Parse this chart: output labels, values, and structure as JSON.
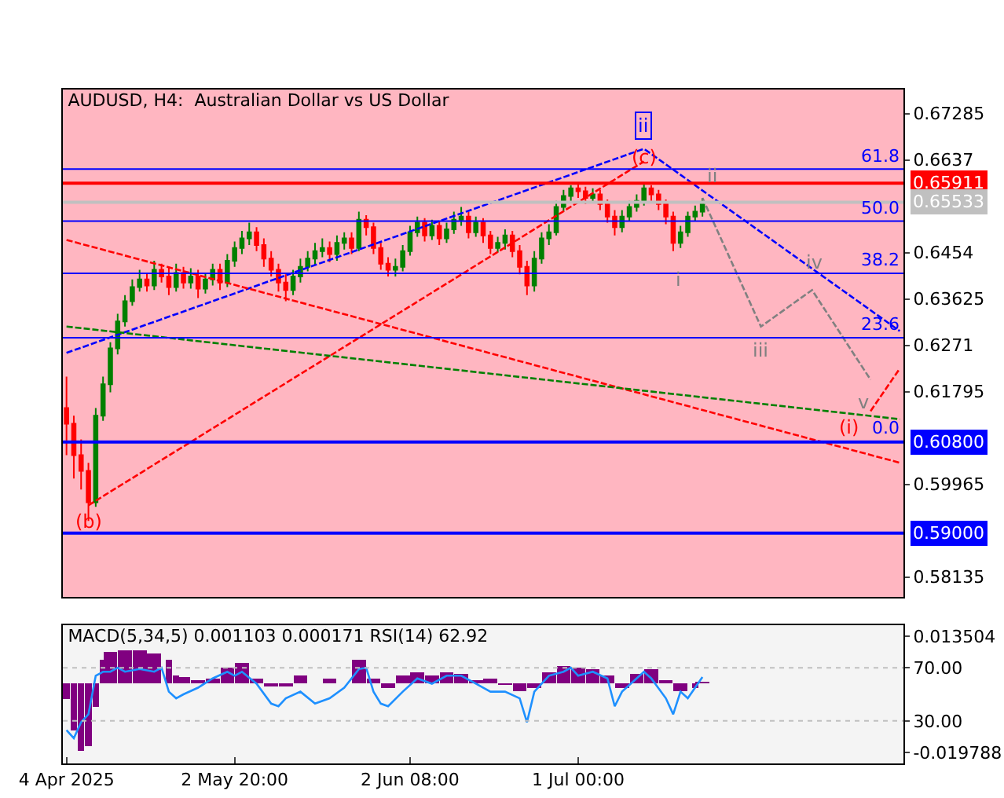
{
  "chart_data": [
    {
      "type": "candlestick",
      "title": "AUDUSD, H4:  Australian Dollar vs US Dollar",
      "categories": [
        null,
        null,
        null,
        null,
        null,
        null,
        null,
        null,
        null,
        null,
        null,
        null,
        null,
        null,
        null,
        null,
        null,
        null,
        null,
        null,
        null,
        null,
        null,
        null,
        null,
        null,
        null,
        null,
        null,
        null,
        null,
        null,
        null,
        null,
        null,
        null,
        null,
        null,
        null,
        null,
        null,
        null,
        null,
        null,
        null,
        null,
        null,
        null,
        null,
        null,
        null,
        null,
        null,
        null,
        null,
        null,
        null,
        null,
        null,
        null,
        null,
        null,
        null,
        null,
        null,
        null,
        null,
        null,
        null,
        null,
        null,
        null,
        null,
        null,
        null,
        null,
        null,
        null,
        null,
        null,
        null,
        null,
        null,
        null,
        null,
        null,
        null,
        null,
        null,
        null,
        null,
        null,
        null,
        null,
        null,
        null,
        null,
        null,
        null,
        null,
        null,
        null,
        null,
        null,
        null,
        null,
        null,
        null,
        null,
        null,
        null,
        null,
        null,
        null,
        null
      ],
      "ohlc": [
        [
          0.6147,
          0.6209,
          0.6054,
          0.6116
        ],
        [
          0.6116,
          0.6132,
          0.6008,
          0.6054
        ],
        [
          0.6054,
          0.6085,
          0.5986,
          0.6023
        ],
        [
          0.6023,
          0.6039,
          0.5924,
          0.5961
        ],
        [
          0.5961,
          0.6147,
          0.5952,
          0.6132
        ],
        [
          0.6132,
          0.6209,
          0.6122,
          0.6194
        ],
        [
          0.6194,
          0.6277,
          0.6178,
          0.6265
        ],
        [
          0.6265,
          0.6333,
          0.6253,
          0.6318
        ],
        [
          0.6318,
          0.637,
          0.6308,
          0.6358
        ],
        [
          0.6358,
          0.6401,
          0.6349,
          0.6386
        ],
        [
          0.6386,
          0.642,
          0.6377,
          0.6401
        ],
        [
          0.6401,
          0.6414,
          0.6377,
          0.6389
        ],
        [
          0.6389,
          0.6438,
          0.638,
          0.642
        ],
        [
          0.642,
          0.6432,
          0.6395,
          0.6407
        ],
        [
          0.6407,
          0.6426,
          0.637,
          0.6386
        ],
        [
          0.6386,
          0.6432,
          0.6377,
          0.6414
        ],
        [
          0.6414,
          0.6426,
          0.6383,
          0.6395
        ],
        [
          0.6395,
          0.6423,
          0.6383,
          0.6407
        ],
        [
          0.6407,
          0.642,
          0.6364,
          0.6383
        ],
        [
          0.6383,
          0.6414,
          0.6373,
          0.6401
        ],
        [
          0.6401,
          0.6432,
          0.6389,
          0.642
        ],
        [
          0.642,
          0.6432,
          0.638,
          0.6395
        ],
        [
          0.6395,
          0.6451,
          0.6386,
          0.6438
        ],
        [
          0.6438,
          0.6476,
          0.6426,
          0.6463
        ],
        [
          0.6463,
          0.6497,
          0.6451,
          0.6482
        ],
        [
          0.6482,
          0.6513,
          0.6469,
          0.6494
        ],
        [
          0.6494,
          0.6504,
          0.6457,
          0.6469
        ],
        [
          0.6469,
          0.6482,
          0.6426,
          0.6442
        ],
        [
          0.6442,
          0.6457,
          0.6407,
          0.642
        ],
        [
          0.642,
          0.6432,
          0.6377,
          0.6395
        ],
        [
          0.6395,
          0.6411,
          0.6358,
          0.638
        ],
        [
          0.638,
          0.642,
          0.637,
          0.6407
        ],
        [
          0.6407,
          0.6442,
          0.6395,
          0.6426
        ],
        [
          0.6426,
          0.6457,
          0.6417,
          0.6442
        ],
        [
          0.6442,
          0.6473,
          0.6429,
          0.6457
        ],
        [
          0.6457,
          0.6482,
          0.6445,
          0.6463
        ],
        [
          0.6463,
          0.6476,
          0.6435,
          0.6451
        ],
        [
          0.6451,
          0.6488,
          0.6438,
          0.6473
        ],
        [
          0.6473,
          0.6494,
          0.646,
          0.6482
        ],
        [
          0.6482,
          0.6494,
          0.6451,
          0.6463
        ],
        [
          0.6463,
          0.6535,
          0.6457,
          0.6519
        ],
        [
          0.6519,
          0.6528,
          0.6488,
          0.6504
        ],
        [
          0.6504,
          0.6513,
          0.6451,
          0.6463
        ],
        [
          0.6463,
          0.6473,
          0.642,
          0.6432
        ],
        [
          0.6432,
          0.6445,
          0.6407,
          0.642
        ],
        [
          0.642,
          0.6442,
          0.6407,
          0.6426
        ],
        [
          0.6426,
          0.6469,
          0.6417,
          0.6457
        ],
        [
          0.6457,
          0.6507,
          0.6448,
          0.6494
        ],
        [
          0.6494,
          0.6525,
          0.6485,
          0.6513
        ],
        [
          0.6513,
          0.6522,
          0.6476,
          0.6488
        ],
        [
          0.6488,
          0.6519,
          0.6479,
          0.6507
        ],
        [
          0.6507,
          0.6516,
          0.6469,
          0.6482
        ],
        [
          0.6482,
          0.6513,
          0.6473,
          0.65
        ],
        [
          0.65,
          0.6535,
          0.6491,
          0.6519
        ],
        [
          0.6519,
          0.6544,
          0.6507,
          0.6525
        ],
        [
          0.6525,
          0.6535,
          0.6482,
          0.6494
        ],
        [
          0.6494,
          0.6525,
          0.6485,
          0.6513
        ],
        [
          0.6513,
          0.6522,
          0.6473,
          0.6488
        ],
        [
          0.6488,
          0.6497,
          0.6451,
          0.6463
        ],
        [
          0.6463,
          0.6485,
          0.6454,
          0.6473
        ],
        [
          0.6473,
          0.65,
          0.646,
          0.6488
        ],
        [
          0.6488,
          0.6497,
          0.6445,
          0.6457
        ],
        [
          0.6457,
          0.6469,
          0.6411,
          0.6426
        ],
        [
          0.6426,
          0.6438,
          0.637,
          0.6389
        ],
        [
          0.6389,
          0.6457,
          0.6377,
          0.6442
        ],
        [
          0.6442,
          0.6494,
          0.6432,
          0.6482
        ],
        [
          0.6482,
          0.651,
          0.6469,
          0.6494
        ],
        [
          0.6494,
          0.6556,
          0.6488,
          0.6544
        ],
        [
          0.6544,
          0.6578,
          0.6535,
          0.6566
        ],
        [
          0.6566,
          0.6587,
          0.6553,
          0.6581
        ],
        [
          0.6581,
          0.659,
          0.6562,
          0.6575
        ],
        [
          0.6575,
          0.6584,
          0.655,
          0.6562
        ],
        [
          0.6562,
          0.6581,
          0.6553,
          0.6569
        ],
        [
          0.6569,
          0.6578,
          0.6538,
          0.655
        ],
        [
          0.655,
          0.6559,
          0.6513,
          0.6525
        ],
        [
          0.6525,
          0.6538,
          0.6488,
          0.6504
        ],
        [
          0.6504,
          0.6538,
          0.6494,
          0.6525
        ],
        [
          0.6525,
          0.6556,
          0.6516,
          0.6544
        ],
        [
          0.6544,
          0.6569,
          0.6535,
          0.6556
        ],
        [
          0.6556,
          0.659,
          0.6547,
          0.6581
        ],
        [
          0.6581,
          0.6587,
          0.6556,
          0.6569
        ],
        [
          0.6569,
          0.6578,
          0.6538,
          0.655
        ],
        [
          0.655,
          0.6559,
          0.651,
          0.6525
        ],
        [
          0.6525,
          0.6535,
          0.6457,
          0.6473
        ],
        [
          0.6473,
          0.6507,
          0.6463,
          0.6494
        ],
        [
          0.6494,
          0.6535,
          0.6485,
          0.6525
        ],
        [
          0.6525,
          0.6547,
          0.6516,
          0.6535
        ],
        [
          0.6535,
          0.6562,
          0.6525,
          0.6553
        ],
        null,
        null,
        null,
        null,
        null,
        null,
        null,
        null,
        null,
        null,
        null,
        null,
        null,
        null,
        null,
        null,
        null,
        null,
        null,
        null,
        null,
        null,
        null,
        null,
        null,
        null,
        null
      ],
      "colors": [
        "#ff0000",
        "#ff0000",
        "#ff0000",
        "#ff0000",
        "#008000",
        "#008000",
        "#008000",
        "#008000",
        "#008000",
        "#008000",
        "#008000",
        "#ff0000",
        "#008000",
        "#ff0000",
        "#ff0000",
        "#008000",
        "#ff0000",
        "#008000",
        "#ff0000",
        "#008000",
        "#008000",
        "#ff0000",
        "#008000",
        "#008000",
        "#008000",
        "#008000",
        "#ff0000",
        "#ff0000",
        "#ff0000",
        "#ff0000",
        "#ff0000",
        "#008000",
        "#008000",
        "#008000",
        "#008000",
        "#008000",
        "#ff0000",
        "#008000",
        "#008000",
        "#ff0000",
        "#008000",
        "#ff0000",
        "#ff0000",
        "#ff0000",
        "#ff0000",
        "#008000",
        "#008000",
        "#008000",
        "#008000",
        "#ff0000",
        "#008000",
        "#ff0000",
        "#008000",
        "#008000",
        "#008000",
        "#ff0000",
        "#008000",
        "#ff0000",
        "#ff0000",
        "#008000",
        "#008000",
        "#ff0000",
        "#ff0000",
        "#ff0000",
        "#008000",
        "#008000",
        "#008000",
        "#008000",
        "#008000",
        "#008000",
        "#ff0000",
        "#ff0000",
        "#008000",
        "#ff0000",
        "#ff0000",
        "#ff0000",
        "#008000",
        "#008000",
        "#008000",
        "#008000",
        "#ff0000",
        "#ff0000",
        "#ff0000",
        "#ff0000",
        "#008000",
        "#008000",
        "#008000",
        "#008000",
        null,
        null,
        null,
        null,
        null,
        null,
        null,
        null,
        null,
        null,
        null,
        null,
        null,
        null,
        null,
        null,
        null,
        null,
        null,
        null,
        null,
        null,
        null,
        null,
        null,
        null,
        null
      ],
      "series": [
        {
          "type": "line",
          "color": "#808080",
          "line_style": "dashed",
          "values": [
            null,
            null,
            null,
            null,
            null,
            null,
            null,
            null,
            null,
            null,
            null,
            null,
            null,
            null,
            null,
            null,
            null,
            null,
            null,
            null,
            null,
            null,
            null,
            null,
            null,
            null,
            null,
            null,
            null,
            null,
            null,
            null,
            null,
            null,
            null,
            null,
            null,
            null,
            null,
            null,
            null,
            null,
            null,
            null,
            null,
            null,
            null,
            null,
            null,
            null,
            null,
            null,
            null,
            null,
            null,
            null,
            null,
            null,
            null,
            null,
            null,
            null,
            null,
            null,
            null,
            null,
            null,
            null,
            null,
            null,
            null,
            null,
            null,
            null,
            null,
            null,
            null,
            null,
            null,
            null,
            null,
            null,
            null,
            null,
            null,
            null,
            null,
            0.6562,
            null,
            null,
            null,
            null,
            null,
            null,
            null,
            0.6308,
            null,
            null,
            null,
            null,
            null,
            null,
            0.638,
            null,
            null,
            null,
            null,
            null,
            null,
            null,
            0.6203,
            null,
            null,
            null,
            null
          ]
        },
        {
          "type": "line",
          "color": "#0000ff",
          "line_style": "dashed",
          "values": [
            0.6256,
            null,
            null,
            null,
            null,
            null,
            null,
            null,
            null,
            null,
            null,
            null,
            null,
            null,
            null,
            null,
            null,
            null,
            null,
            null,
            null,
            null,
            null,
            null,
            null,
            null,
            null,
            null,
            null,
            null,
            null,
            null,
            null,
            null,
            null,
            null,
            null,
            null,
            null,
            null,
            null,
            null,
            null,
            null,
            null,
            null,
            null,
            null,
            null,
            null,
            null,
            null,
            null,
            null,
            null,
            null,
            null,
            null,
            null,
            null,
            null,
            null,
            null,
            null,
            null,
            null,
            null,
            null,
            null,
            null,
            null,
            null,
            null,
            null,
            null,
            null,
            null,
            null,
            null,
            0.6659,
            null,
            null,
            null,
            null,
            null,
            null,
            null,
            null,
            null,
            null,
            null,
            null,
            null,
            null,
            null,
            null,
            null,
            null,
            null,
            null,
            null,
            null,
            null,
            null,
            null,
            null,
            null,
            null,
            null,
            null,
            null,
            null,
            null,
            null,
            0.6299
          ]
        },
        {
          "type": "line",
          "color": "#ff0000",
          "line_style": "dashed",
          "values": [
            null,
            null,
            null,
            0.5955,
            null,
            null,
            null,
            null,
            null,
            null,
            null,
            null,
            null,
            null,
            null,
            null,
            null,
            null,
            null,
            null,
            null,
            null,
            null,
            null,
            null,
            null,
            null,
            null,
            null,
            null,
            null,
            null,
            null,
            null,
            null,
            null,
            null,
            null,
            null,
            null,
            null,
            null,
            null,
            null,
            null,
            null,
            null,
            null,
            null,
            null,
            null,
            null,
            null,
            null,
            null,
            null,
            null,
            null,
            null,
            null,
            null,
            null,
            null,
            null,
            null,
            null,
            null,
            null,
            null,
            null,
            null,
            null,
            null,
            null,
            null,
            null,
            null,
            null,
            null,
            0.6634,
            null,
            null,
            null,
            null,
            null,
            null,
            null,
            null,
            null,
            null,
            null,
            null,
            null,
            null,
            null,
            null,
            null,
            null,
            null,
            null,
            null,
            null,
            null,
            null,
            null,
            null,
            null,
            null,
            null,
            null,
            null,
            null,
            null,
            null,
            null
          ]
        },
        {
          "type": "line",
          "color": "#ff0000",
          "line_style": "dashed",
          "values": [
            null,
            null,
            null,
            null,
            null,
            null,
            null,
            null,
            null,
            null,
            null,
            null,
            null,
            null,
            null,
            null,
            null,
            null,
            null,
            null,
            null,
            null,
            null,
            null,
            null,
            null,
            null,
            null,
            null,
            null,
            null,
            null,
            null,
            null,
            null,
            null,
            null,
            null,
            null,
            null,
            null,
            null,
            null,
            null,
            null,
            null,
            null,
            null,
            null,
            null,
            null,
            null,
            null,
            null,
            null,
            null,
            null,
            null,
            null,
            null,
            null,
            null,
            null,
            null,
            null,
            null,
            null,
            null,
            null,
            null,
            null,
            null,
            null,
            null,
            null,
            null,
            null,
            null,
            null,
            null,
            null,
            null,
            null,
            null,
            null,
            null,
            null,
            null,
            null,
            null,
            null,
            null,
            null,
            null,
            null,
            null,
            null,
            null,
            null,
            null,
            null,
            null,
            null,
            null,
            null,
            null,
            null,
            null,
            null,
            null,
            0.6141,
            null,
            null,
            null,
            0.6225
          ]
        },
        {
          "type": "line",
          "color": "#ff0000",
          "line_style": "dashed",
          "values": [
            0.6479,
            null,
            null,
            null,
            null,
            null,
            null,
            null,
            null,
            null,
            null,
            null,
            null,
            null,
            null,
            null,
            null,
            null,
            null,
            null,
            null,
            null,
            null,
            null,
            null,
            null,
            null,
            null,
            null,
            null,
            null,
            null,
            null,
            null,
            null,
            null,
            null,
            null,
            null,
            null,
            null,
            null,
            null,
            null,
            null,
            null,
            null,
            null,
            null,
            null,
            null,
            null,
            null,
            null,
            null,
            null,
            null,
            null,
            null,
            null,
            null,
            null,
            null,
            null,
            null,
            null,
            null,
            null,
            null,
            null,
            null,
            null,
            null,
            null,
            null,
            null,
            null,
            null,
            null,
            null,
            null,
            null,
            null,
            null,
            null,
            null,
            null,
            null,
            null,
            null,
            null,
            null,
            null,
            null,
            null,
            null,
            null,
            null,
            null,
            null,
            null,
            null,
            null,
            null,
            null,
            null,
            null,
            null,
            null,
            null,
            null,
            null,
            null,
            null,
            0.6039
          ]
        },
        {
          "type": "line",
          "color": "#008000",
          "line_style": "dashed",
          "values": [
            0.6308,
            null,
            null,
            null,
            null,
            null,
            null,
            null,
            null,
            null,
            null,
            null,
            null,
            null,
            null,
            null,
            null,
            null,
            null,
            null,
            null,
            null,
            null,
            null,
            null,
            null,
            null,
            null,
            null,
            null,
            null,
            null,
            null,
            null,
            null,
            null,
            null,
            null,
            null,
            null,
            null,
            null,
            null,
            null,
            null,
            null,
            null,
            null,
            null,
            null,
            null,
            null,
            null,
            null,
            null,
            null,
            null,
            null,
            null,
            null,
            null,
            null,
            null,
            null,
            null,
            null,
            null,
            null,
            null,
            null,
            null,
            null,
            null,
            null,
            null,
            null,
            null,
            null,
            null,
            null,
            null,
            null,
            null,
            null,
            null,
            null,
            null,
            null,
            null,
            null,
            null,
            null,
            null,
            null,
            null,
            null,
            null,
            null,
            null,
            null,
            null,
            null,
            null,
            null,
            null,
            null,
            null,
            null,
            null,
            null,
            null,
            null,
            null,
            null,
            0.6125
          ]
        }
      ],
      "ylim": [
        0.5774,
        0.6776
      ],
      "yticks": [
        0.67285,
        0.6637,
        0.6454,
        0.63625,
        0.6271,
        0.61795,
        0.59965,
        0.58135
      ],
      "tick_labels": "y",
      "ref_lines": [
        {
          "axis": "y",
          "value": 0.6619,
          "color": "#0000ff"
        },
        {
          "axis": "y",
          "value": 0.6516,
          "color": "#0000ff"
        },
        {
          "axis": "y",
          "value": 0.6413,
          "color": "#0000ff"
        },
        {
          "axis": "y",
          "value": 0.6286,
          "color": "#0000ff"
        },
        {
          "axis": "y",
          "value": 0.65911,
          "label": "0.65911",
          "color": "#ff0000",
          "line_style": "solid"
        },
        {
          "axis": "y",
          "value": 0.65533,
          "label": "0.65533",
          "color": "#c0c0c0",
          "line_style": "solid"
        },
        {
          "axis": "y",
          "value": 0.608,
          "label": "0.60800",
          "color": "#0000ff",
          "line_style": "solid"
        },
        {
          "axis": "y",
          "value": 0.59,
          "label": "0.59000",
          "color": "#0000ff",
          "line_style": "solid"
        }
      ],
      "annotations": [
        "ii",
        "(c)",
        "ii",
        "i",
        "iii",
        "iv",
        "v",
        "(i)",
        "(b)",
        {
          "text": "61.8",
          "y": 0.6619
        },
        {
          "text": "50.0",
          "y": 0.6516
        },
        {
          "text": "38.2",
          "y": 0.6413
        },
        {
          "text": "23.6",
          "y": 0.6286
        },
        {
          "text": "0.0",
          "y": 0.608
        }
      ],
      "grid": false
    },
    {
      "type": "bar",
      "title": "MACD(5,34,5) 0.001103 0.000171 RSI(14) 62.92",
      "categories": [
        "4 Apr 2025",
        null,
        null,
        null,
        null,
        null,
        null,
        null,
        null,
        null,
        null,
        null,
        null,
        null,
        null,
        null,
        null,
        null,
        null,
        null,
        null,
        null,
        null,
        "2 May 20:00",
        null,
        null,
        null,
        null,
        null,
        null,
        null,
        null,
        null,
        null,
        null,
        null,
        null,
        null,
        null,
        null,
        null,
        null,
        null,
        null,
        null,
        null,
        null,
        "2 Jun 08:00",
        null,
        null,
        null,
        null,
        null,
        null,
        null,
        null,
        null,
        null,
        null,
        null,
        null,
        null,
        null,
        null,
        null,
        null,
        null,
        null,
        null,
        null,
        "1 Jul 00:00",
        null,
        null,
        null,
        null,
        null,
        null,
        null,
        null,
        null,
        null,
        null,
        null,
        null,
        null,
        null,
        null,
        null,
        null,
        null,
        null,
        null,
        null,
        null,
        null,
        null,
        null,
        null,
        null,
        null,
        null,
        null,
        null,
        null,
        null,
        null,
        null,
        null,
        null,
        null,
        null,
        null,
        null,
        null,
        null
      ],
      "series": [
        {
          "type": "bar",
          "color": "#800080",
          "values": [
            -0.0045,
            -0.0135,
            -0.0194,
            -0.018,
            -0.0068,
            0.0068,
            0.009,
            null,
            0.0095,
            null,
            0.0095,
            null,
            0.0086,
            null,
            0.0068,
            0.0023,
            0.0018,
            null,
            0.0009,
            null,
            0.0014,
            null,
            0.0045,
            null,
            0.0059,
            null,
            0.0014,
            null,
            -0.0009,
            null,
            -0.0009,
            null,
            0.0023,
            null,
            0,
            null,
            0.0014,
            null,
            0,
            null,
            0.0068,
            null,
            0.0014,
            null,
            -0.0014,
            null,
            0.0023,
            null,
            0.0032,
            null,
            0.0023,
            null,
            0.0032,
            null,
            0.0027,
            null,
            0.0009,
            null,
            0.0014,
            null,
            -0.0005,
            null,
            -0.0023,
            null,
            -0.0014,
            null,
            0.0032,
            null,
            0.005,
            null,
            0.0045,
            null,
            0.0041,
            null,
            0.0023,
            null,
            -0.0014,
            null,
            0.0027,
            null,
            0.0041,
            null,
            0.0009,
            null,
            -0.0023,
            null,
            -0.0014,
            0.0005,
            null,
            null,
            null,
            null,
            null,
            null,
            null,
            null,
            null,
            null,
            null,
            null,
            null,
            null,
            null,
            null,
            null,
            null,
            null,
            null,
            null,
            null,
            null,
            null,
            null,
            null,
            null
          ]
        },
        {
          "type": "line",
          "color": "#1e90ff",
          "axis": "y2",
          "values": [
            23,
            17,
            29,
            35,
            64,
            67,
            67,
            70,
            67,
            null,
            69,
            null,
            67,
            70,
            52,
            47,
            50,
            null,
            55,
            null,
            62,
            null,
            67,
            64,
            67,
            null,
            58,
            null,
            43,
            41,
            47,
            null,
            52,
            null,
            43,
            null,
            47,
            null,
            55,
            null,
            69,
            70,
            52,
            43,
            41,
            null,
            52,
            null,
            62,
            null,
            58,
            null,
            64,
            null,
            64,
            null,
            58,
            null,
            52,
            null,
            52,
            null,
            47,
            29,
            52,
            null,
            64,
            null,
            67,
            70,
            64,
            null,
            67,
            null,
            62,
            41,
            52,
            null,
            62,
            67,
            62,
            null,
            47,
            35,
            52,
            47,
            55,
            63,
            null,
            null,
            null,
            null,
            null,
            null,
            null,
            null,
            null,
            null,
            null,
            null,
            null,
            null,
            null,
            null,
            null,
            null,
            null,
            null,
            null,
            null,
            null,
            null,
            null,
            null,
            null
          ]
        }
      ],
      "ylim": [
        -0.0229,
        0.0167
      ],
      "yticks": [
        0.013504,
        -0.019788
      ],
      "y2lim": [
        -2,
        102
      ],
      "y2ticks": [
        {
          "value": 70,
          "label": "70.00"
        },
        {
          "value": 30,
          "label": "30.00"
        }
      ],
      "ref_lines": [
        {
          "axis": "y2",
          "value": 70,
          "color": "#c0c0c0",
          "line_style": "dotted"
        },
        {
          "axis": "y2",
          "value": 30,
          "color": "#c0c0c0",
          "line_style": "dotted"
        }
      ],
      "grid": false
    }
  ]
}
